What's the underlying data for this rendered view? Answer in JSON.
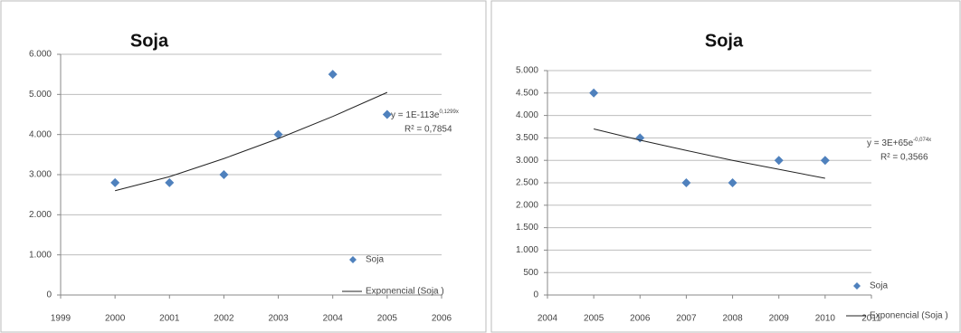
{
  "chart_data": [
    {
      "type": "scatter",
      "title": "Soja",
      "series": [
        {
          "name": "Soja",
          "color": "#4f81bd",
          "x": [
            2000,
            2001,
            2002,
            2003,
            2004,
            2005
          ],
          "values": [
            2800,
            2800,
            3000,
            4000,
            5500,
            4500
          ]
        },
        {
          "name": "Exponencial (Soja )",
          "color": "#222222",
          "type": "line",
          "x": [
            2000,
            2001,
            2002,
            2003,
            2004,
            2005
          ],
          "values": [
            2600,
            2950,
            3400,
            3900,
            4450,
            5050
          ]
        }
      ],
      "equation": "y = 1E-113e",
      "equation_exponent": "0,1299x",
      "r_squared": "R² = 0,7854",
      "xlim": [
        1999,
        2006
      ],
      "xticks": [
        1999,
        2000,
        2001,
        2002,
        2003,
        2004,
        2005,
        2006
      ],
      "ylim": [
        0,
        6000
      ],
      "yticks": [
        0,
        {
          "value": 1000,
          "label": "1.000"
        },
        {
          "value": 2000,
          "label": "2.000"
        },
        {
          "value": 3000,
          "label": "3.000"
        },
        {
          "value": 4000,
          "label": "4.000"
        },
        {
          "value": 5000,
          "label": "5.000"
        },
        {
          "value": 6000,
          "label": "6.000"
        }
      ],
      "grid": true,
      "legend": "right"
    },
    {
      "type": "scatter",
      "title": "Soja",
      "series": [
        {
          "name": "Soja",
          "color": "#4f81bd",
          "x": [
            2005,
            2006,
            2007,
            2008,
            2009,
            2010
          ],
          "values": [
            4500,
            3500,
            2500,
            2500,
            3000,
            3000
          ]
        },
        {
          "name": "Exponencial (Soja )",
          "color": "#222222",
          "type": "line",
          "x": [
            2005,
            2006,
            2007,
            2008,
            2009,
            2010
          ],
          "values": [
            3700,
            3450,
            3220,
            3000,
            2800,
            2600
          ]
        }
      ],
      "equation": "y = 3E+65e",
      "equation_exponent": "-0,074x",
      "r_squared": "R² = 0,3566",
      "xlim": [
        2004,
        2011
      ],
      "xticks": [
        2004,
        2005,
        2006,
        2007,
        2008,
        2009,
        2010,
        2011
      ],
      "ylim": [
        0,
        5000
      ],
      "yticks": [
        0,
        500,
        {
          "value": 1000,
          "label": "1.000"
        },
        {
          "value": 1500,
          "label": "1.500"
        },
        {
          "value": 2000,
          "label": "2.000"
        },
        {
          "value": 2500,
          "label": "2.500"
        },
        {
          "value": 3000,
          "label": "3.000"
        },
        {
          "value": 3500,
          "label": "3.500"
        },
        {
          "value": 4000,
          "label": "4.000"
        },
        {
          "value": 4500,
          "label": "4.500"
        },
        {
          "value": 5000,
          "label": "5.000"
        }
      ],
      "grid": true,
      "legend": "right"
    }
  ]
}
